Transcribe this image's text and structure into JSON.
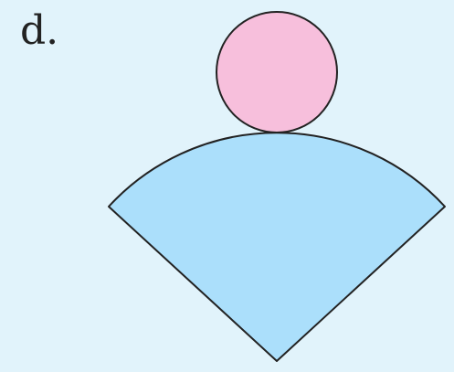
{
  "label": "d.",
  "colors": {
    "background": "#e1f3fb",
    "circle_fill": "#f7bfdc",
    "sector_fill": "#abdffb",
    "stroke": "#222222"
  },
  "shapes": {
    "circle": "circle",
    "sector": "circular-sector"
  }
}
